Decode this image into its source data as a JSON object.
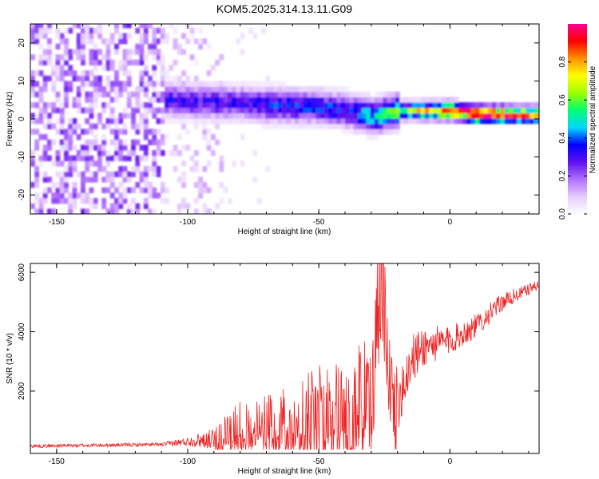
{
  "title": "KOM5.2025.314.13.11.G09",
  "chart_data": [
    {
      "type": "heatmap",
      "name": "spectrogram",
      "xlabel": "Height of straight line (km)",
      "ylabel": "Frequency (Hz)",
      "xlim": [
        -160,
        34
      ],
      "ylim": [
        -25,
        25
      ],
      "xticks": [
        -150,
        -100,
        -50,
        0
      ],
      "yticks": [
        -20,
        -10,
        0,
        10,
        20
      ],
      "colorbar": {
        "label": "Normalized spectral amplitude",
        "range": [
          0,
          1
        ],
        "ticks": [
          "0.0",
          "0.2",
          "0.4",
          "0.6",
          "0.8"
        ],
        "tick_values": [
          0,
          0.2,
          0.4,
          0.6,
          0.8
        ],
        "colors": [
          "#ffffff",
          "#e6ccff",
          "#b070ff",
          "#6010ee",
          "#0000ff",
          "#00d8ff",
          "#00ff70",
          "#a0ff00",
          "#ffff00",
          "#ff9000",
          "#ff0000",
          "#ff0090"
        ]
      },
      "ridge": {
        "x": [
          -110,
          -100,
          -90,
          -80,
          -70,
          -60,
          -50,
          -40,
          -30,
          -20,
          -10,
          0,
          10,
          20,
          34
        ],
        "y": [
          4.5,
          4.0,
          3.8,
          3.5,
          3.0,
          2.8,
          2.5,
          1.5,
          0.0,
          1.5,
          1.5,
          1.5,
          0.5,
          0.5,
          0.5
        ],
        "amplitude": [
          0.3,
          0.3,
          0.3,
          0.3,
          0.35,
          0.35,
          0.35,
          0.35,
          0.45,
          0.55,
          0.7,
          0.85,
          0.95,
          0.9,
          0.75
        ]
      }
    },
    {
      "type": "line",
      "name": "snr",
      "xlabel": "Height of straight line (km)",
      "ylabel": "SNR (10 * v/v)",
      "xlim": [
        -160,
        34
      ],
      "ylim": [
        -100,
        6300
      ],
      "xticks": [
        -150,
        -100,
        -50,
        0
      ],
      "yticks": [
        2000,
        4000,
        6000
      ],
      "color": "#ee2222",
      "envelope": {
        "x": [
          -160,
          -110,
          -100,
          -90,
          -85,
          -80,
          -70,
          -60,
          -50,
          -40,
          -30,
          -27,
          -25,
          -21,
          -15,
          -10,
          0,
          10,
          20,
          34
        ],
        "y": [
          150,
          200,
          300,
          400,
          800,
          1000,
          1100,
          1300,
          1600,
          1800,
          2200,
          6300,
          5000,
          1500,
          3000,
          3500,
          3700,
          4200,
          5000,
          5600
        ],
        "noise": [
          60,
          60,
          150,
          350,
          600,
          700,
          800,
          1000,
          1300,
          1500,
          1700,
          2000,
          1500,
          1200,
          900,
          700,
          500,
          400,
          300,
          150
        ]
      }
    }
  ]
}
